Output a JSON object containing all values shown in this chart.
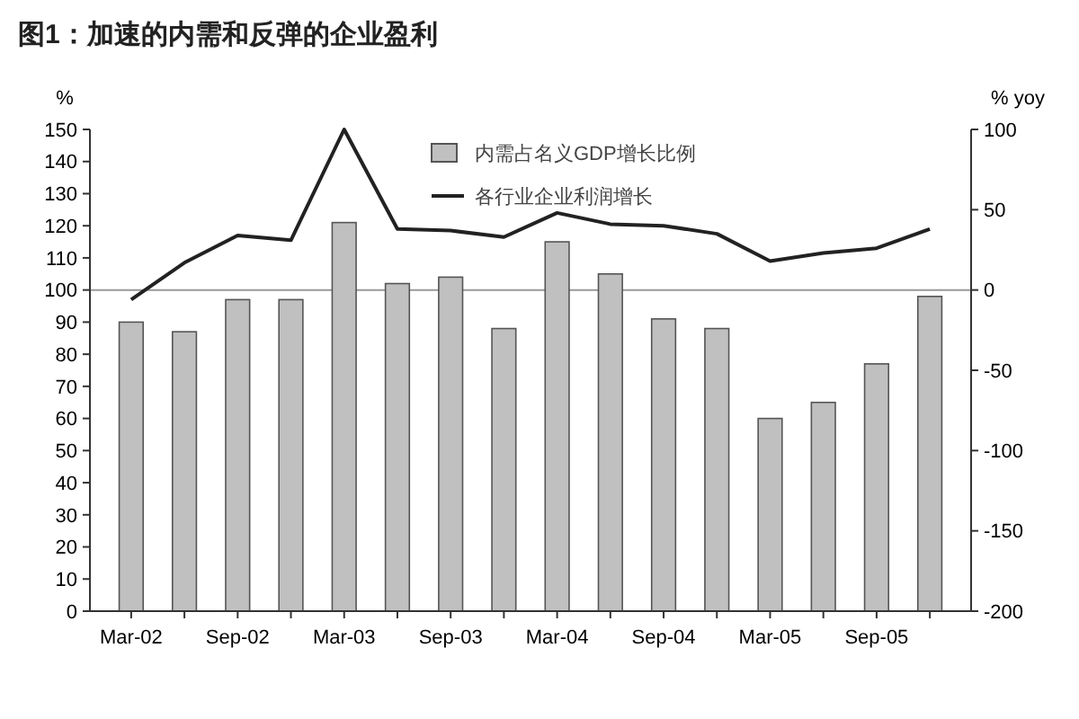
{
  "chart_data": {
    "type": "bar",
    "title": "图1：加速的内需和反弹的企业盈利",
    "ylabel": "%",
    "y2label": "% yoy",
    "categories": [
      "Mar-02",
      null,
      "Sep-02",
      null,
      "Mar-03",
      null,
      "Sep-03",
      null,
      "Mar-04",
      null,
      "Sep-04",
      null,
      "Mar-05",
      null,
      "Sep-05",
      null
    ],
    "series": [
      {
        "name": "内需占名义GDP增长比例",
        "color": "#c0c0c0",
        "values": [
          90,
          87,
          97,
          97,
          121,
          102,
          104,
          88,
          115,
          105,
          91,
          88,
          60,
          65,
          77,
          98
        ]
      },
      {
        "name": "各行业企业利润增长",
        "type": "line",
        "axis": "y2",
        "color": "#222222",
        "values": [
          -6,
          17,
          34,
          31,
          100,
          38,
          37,
          33,
          48,
          41,
          40,
          35,
          18,
          23,
          26,
          38
        ]
      }
    ],
    "ylim": [
      0,
      150
    ],
    "yticks": [
      0,
      10,
      20,
      30,
      40,
      50,
      60,
      70,
      80,
      90,
      100,
      110,
      120,
      130,
      140,
      150
    ],
    "y2lim": [
      -200,
      100
    ],
    "y2ticks": [
      -200,
      -150,
      -100,
      -50,
      0,
      50,
      100
    ],
    "ref_lines": [
      {
        "axis": "y2",
        "value": 0,
        "color": "#999999"
      }
    ],
    "legend": "top",
    "grid": false,
    "marker": "none"
  }
}
